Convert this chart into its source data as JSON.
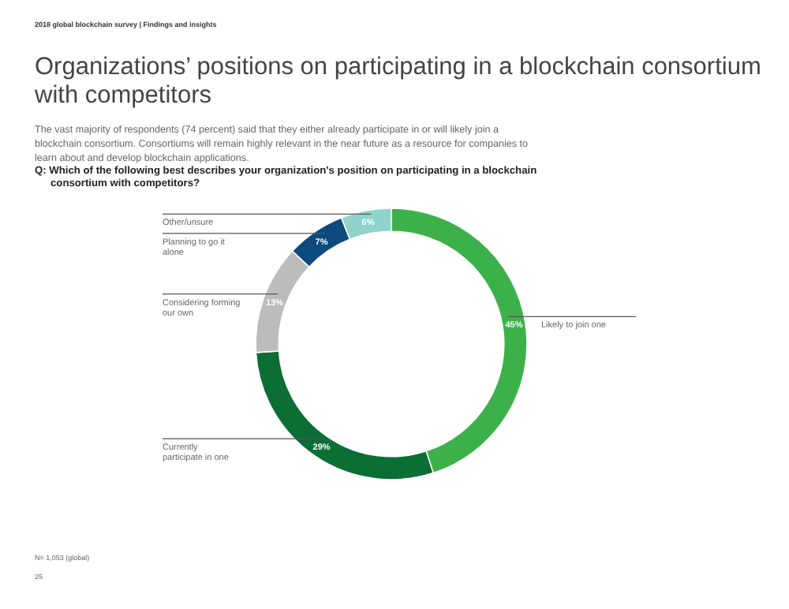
{
  "chart_data": {
    "type": "donut",
    "title": "Organizations’ positions on participating in a blockchain consortium with competitors",
    "subtitle": "The vast majority of respondents (74 percent) said that they either already participate in or will likely join a blockchain consortium. Consortiums will remain highly relevant in the near future as a resource for companies to learn about and develop blockchain applications.",
    "annotations": [
      "2018 global blockchain survey | Findings and insights",
      "Q: Which of the following best describes your organization's position on participating in a blockchain consortium with competitors?",
      "N= 1,053 (global)",
      "25"
    ],
    "categories": [
      "Likely to join one",
      "Currently participate in one",
      "Considering forming our own",
      "Planning to go it alone",
      "Other/unsure"
    ],
    "values": [
      45,
      29,
      13,
      7,
      6
    ],
    "colors": [
      "#3cb14a",
      "#0b6e35",
      "#bcbcbc",
      "#0d4a7e",
      "#8fd3cc"
    ],
    "value_labels": [
      "45%",
      "29%",
      "13%",
      "7%",
      "6%"
    ]
  }
}
